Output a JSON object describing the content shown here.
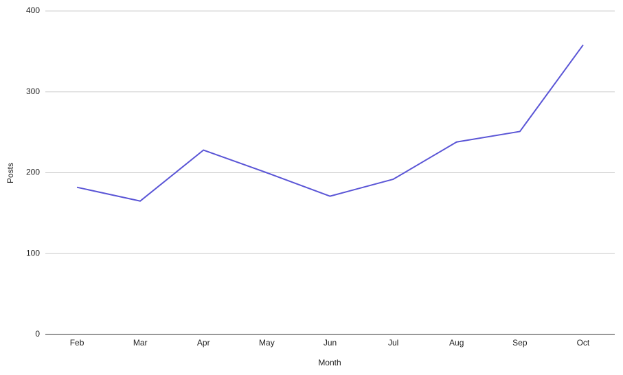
{
  "chart_data": {
    "type": "line",
    "x_label": "Month",
    "y_label": "Posts",
    "categories": [
      "Feb",
      "Mar",
      "Apr",
      "May",
      "Jun",
      "Jul",
      "Aug",
      "Sep",
      "Oct"
    ],
    "series": [
      {
        "name": "Posts",
        "color": "#5a55d6",
        "values": [
          182,
          165,
          228,
          200,
          171,
          192,
          238,
          251,
          358
        ]
      }
    ],
    "ylim": [
      0,
      400
    ],
    "yticks": [
      0,
      100,
      200,
      300,
      400
    ],
    "grid": true
  }
}
